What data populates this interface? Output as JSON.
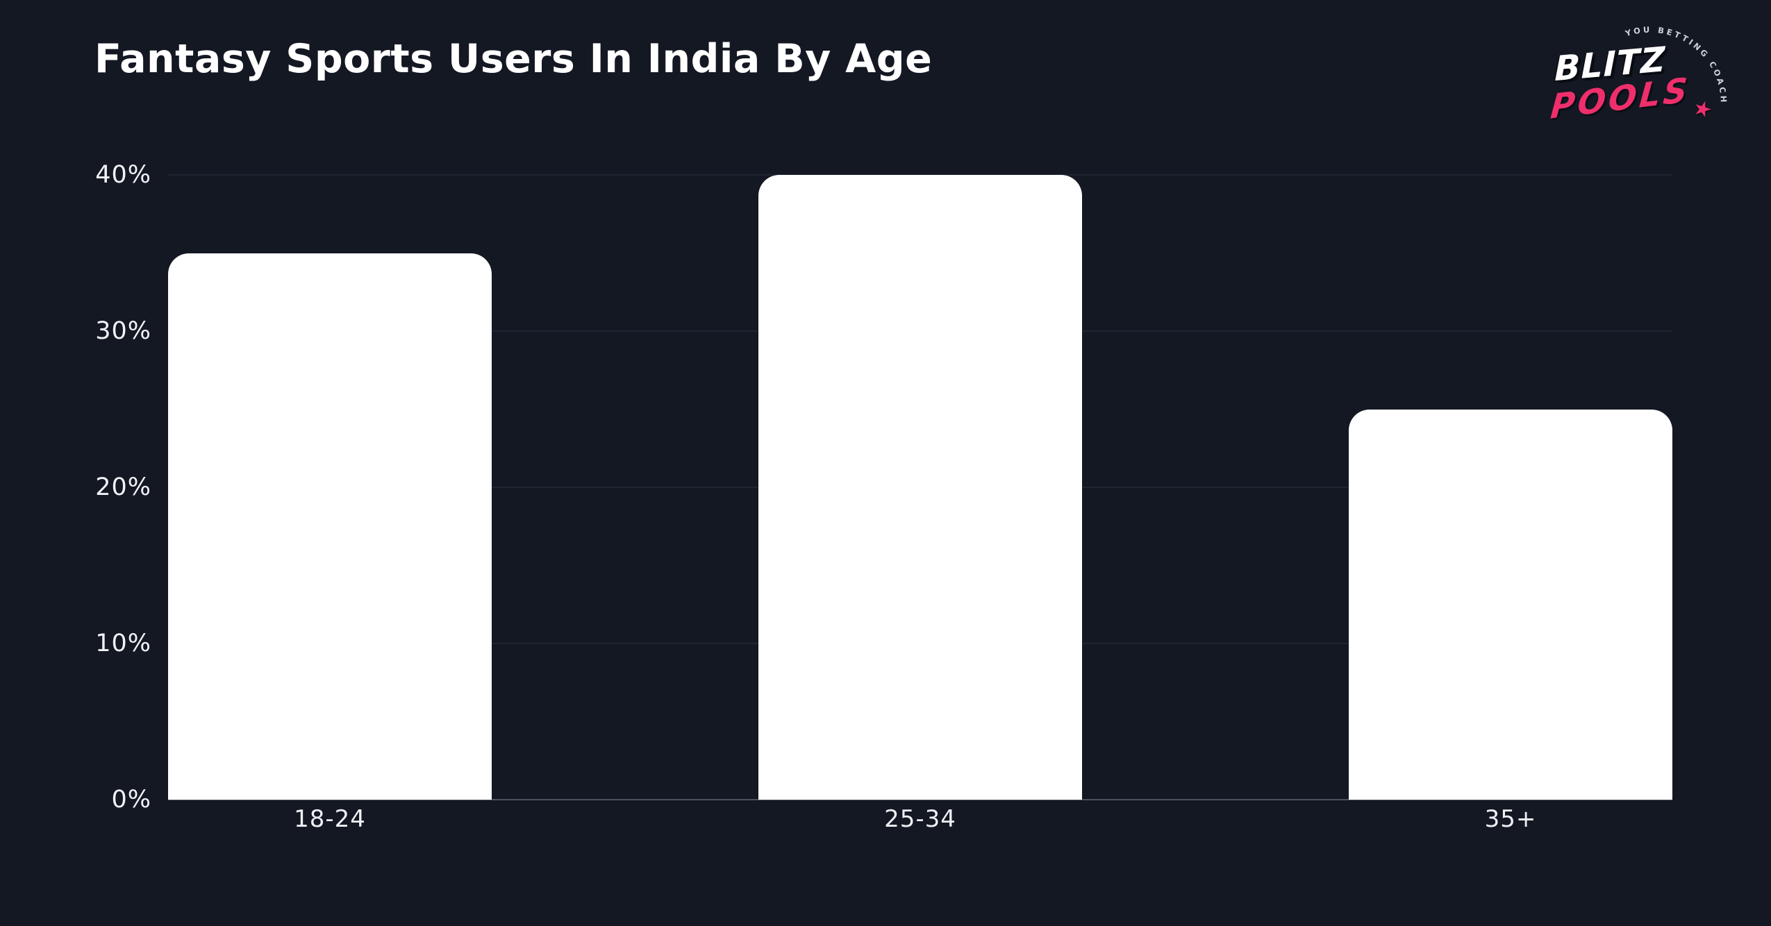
{
  "page": {
    "background_color": "#141823",
    "bar_color": "#ffffff",
    "accent_color": "#ee2f6b"
  },
  "header": {
    "title": "Fantasy Sports Users In India By Age"
  },
  "logo": {
    "tagline": "YOU BETTING COACH",
    "brand_line1": "BLITZ",
    "brand_line2": "POOLS",
    "star": "★"
  },
  "chart_data": {
    "type": "bar",
    "title": "Fantasy Sports Users In India By Age",
    "categories": [
      "18-24",
      "25-34",
      "35+"
    ],
    "values": [
      35,
      40,
      25
    ],
    "value_unit": "%",
    "xlabel": "",
    "ylabel": "",
    "ylim": [
      0,
      40
    ],
    "yticks": [
      0,
      10,
      20,
      30,
      40
    ],
    "grid": true,
    "legend": false,
    "bar_color": "#ffffff",
    "background": "#141823"
  }
}
